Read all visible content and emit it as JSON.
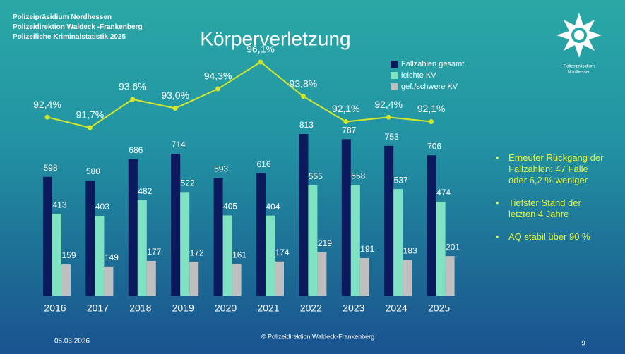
{
  "header": {
    "lines": [
      "Polizeipräsidium Nordhessen",
      "Polizeidirektion Waldeck -Frankenberg",
      "Polizeiliche Kriminalstatistik 2025"
    ]
  },
  "logo_text": [
    "Polizeipräsidium",
    "Nordhessen"
  ],
  "chart_data": {
    "type": "bar",
    "title": "Körperverletzung",
    "categories": [
      "2016",
      "2017",
      "2018",
      "2019",
      "2020",
      "2021",
      "2022",
      "2023",
      "2024",
      "2025"
    ],
    "series": [
      {
        "name": "Fallzahlen gesamt",
        "color": "#0b1a5c",
        "values": [
          598,
          580,
          686,
          714,
          593,
          616,
          813,
          787,
          753,
          706
        ]
      },
      {
        "name": "leichte KV",
        "color": "#7fe3c3",
        "values": [
          413,
          403,
          482,
          522,
          405,
          404,
          555,
          558,
          537,
          474
        ]
      },
      {
        "name": "gef./schwere KV",
        "color": "#bfbfbf",
        "values": [
          159,
          149,
          177,
          172,
          161,
          174,
          219,
          191,
          183,
          201
        ]
      },
      {
        "type": "line",
        "axis": "y2",
        "color": "#d4e62a",
        "values": [
          92.4,
          91.7,
          93.6,
          93.0,
          94.3,
          96.1,
          93.8,
          92.1,
          92.4,
          92.1
        ],
        "value_labels": [
          "92,4%",
          "91,7%",
          "93,6%",
          "93,0%",
          "94,3%",
          "96,1%",
          "93,8%",
          "92,1%",
          "92,4%",
          "92,1%"
        ]
      }
    ],
    "legend": "top-right"
  },
  "bullets": [
    "Erneuter Rückgang der Fallzahlen: 47 Fälle oder 6,2 % weniger",
    "Tiefster Stand der letzten 4 Jahre",
    "AQ stabil über 90 %"
  ],
  "footer": {
    "date": "05.03.2026",
    "copyright": "© Polizeidirektion Waldeck-Frankenberg",
    "page": "9"
  }
}
